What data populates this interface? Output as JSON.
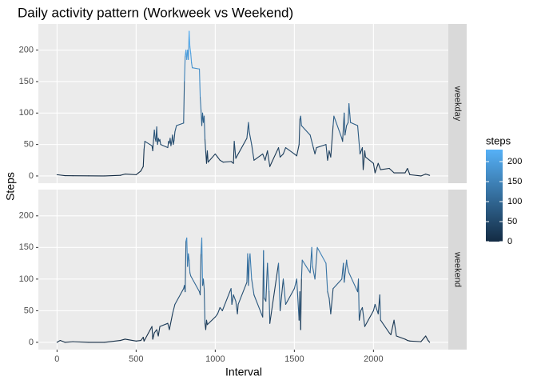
{
  "chart_data": {
    "type": "line",
    "title": "Daily activity pattern (Workweek vs Weekend)",
    "x_label": "Interval",
    "y_label": "Steps",
    "xlim": [
      -118,
      2473
    ],
    "xticks": [
      0,
      500,
      1000,
      1500,
      2000
    ],
    "ylim": [
      -11.5,
      241.5
    ],
    "yticks": [
      0,
      50,
      100,
      150,
      200
    ],
    "grid": true,
    "legend_title": "steps",
    "color_low": "#132b43",
    "color_high": "#56b1f7",
    "colorlim": [
      0,
      230
    ],
    "colorticks": [
      0,
      50,
      100,
      150,
      200
    ],
    "series": [
      {
        "name": "weekday",
        "x": [
          0,
          50,
          100,
          200,
          300,
          400,
          430,
          500,
          515,
          530,
          545,
          550,
          555,
          600,
          605,
          610,
          615,
          620,
          625,
          630,
          635,
          640,
          645,
          650,
          655,
          700,
          705,
          710,
          715,
          720,
          725,
          730,
          735,
          740,
          745,
          750,
          755,
          800,
          805,
          810,
          815,
          820,
          825,
          830,
          835,
          840,
          845,
          850,
          855,
          900,
          905,
          910,
          915,
          920,
          925,
          930,
          935,
          940,
          945,
          950,
          955,
          1000,
          1015,
          1030,
          1050,
          1100,
          1115,
          1120,
          1130,
          1145,
          1200,
          1210,
          1215,
          1230,
          1245,
          1300,
          1315,
          1330,
          1345,
          1400,
          1410,
          1430,
          1445,
          1500,
          1515,
          1530,
          1535,
          1540,
          1545,
          1600,
          1620,
          1630,
          1640,
          1700,
          1710,
          1720,
          1730,
          1745,
          1750,
          1800,
          1805,
          1815,
          1820,
          1830,
          1840,
          1845,
          1850,
          1855,
          1900,
          1915,
          1930,
          1935,
          1945,
          1950,
          2000,
          2010,
          2030,
          2045,
          2100,
          2130,
          2200,
          2215,
          2230,
          2300,
          2330,
          2355
        ],
        "values": [
          2,
          0.5,
          0.4,
          0.2,
          0,
          1,
          3,
          2,
          5,
          8,
          15,
          42,
          55,
          48,
          40,
          57,
          73,
          60,
          55,
          78,
          50,
          60,
          55,
          58,
          50,
          45,
          55,
          52,
          60,
          48,
          55,
          65,
          50,
          57,
          70,
          75,
          80,
          84,
          150,
          190,
          200,
          185,
          200,
          185,
          230,
          205,
          195,
          180,
          172,
          170,
          125,
          105,
          80,
          100,
          85,
          95,
          58,
          38,
          20,
          40,
          22,
          35,
          30,
          25,
          22,
          23,
          20,
          55,
          28,
          35,
          60,
          85,
          70,
          50,
          25,
          35,
          25,
          40,
          15,
          45,
          30,
          35,
          45,
          35,
          32,
          50,
          90,
          95,
          80,
          65,
          45,
          35,
          45,
          50,
          25,
          40,
          30,
          80,
          95,
          60,
          55,
          100,
          65,
          80,
          85,
          115,
          100,
          85,
          80,
          35,
          45,
          10,
          40,
          30,
          20,
          5,
          20,
          10,
          12,
          5,
          5,
          12,
          2,
          0,
          3,
          1
        ]
      },
      {
        "name": "weekend",
        "x": [
          0,
          20,
          50,
          100,
          200,
          300,
          400,
          430,
          500,
          530,
          545,
          550,
          600,
          605,
          615,
          630,
          640,
          650,
          700,
          710,
          730,
          745,
          800,
          805,
          810,
          815,
          820,
          825,
          830,
          835,
          840,
          845,
          900,
          905,
          910,
          915,
          920,
          925,
          930,
          935,
          940,
          945,
          950,
          1000,
          1015,
          1030,
          1045,
          1100,
          1105,
          1115,
          1130,
          1140,
          1145,
          1200,
          1205,
          1210,
          1215,
          1220,
          1230,
          1245,
          1300,
          1305,
          1310,
          1320,
          1330,
          1340,
          1345,
          1400,
          1410,
          1430,
          1445,
          1500,
          1515,
          1530,
          1535,
          1540,
          1545,
          1550,
          1600,
          1610,
          1615,
          1630,
          1645,
          1700,
          1710,
          1720,
          1730,
          1745,
          1800,
          1810,
          1815,
          1830,
          1835,
          1845,
          1900,
          1905,
          1910,
          1920,
          1930,
          1945,
          2000,
          2010,
          2030,
          2040,
          2045,
          2100,
          2110,
          2130,
          2145,
          2200,
          2215,
          2230,
          2300,
          2330,
          2345,
          2355
        ],
        "values": [
          0,
          3,
          0,
          1,
          0,
          0,
          3,
          5,
          2,
          3,
          8,
          2,
          25,
          5,
          15,
          20,
          10,
          25,
          30,
          20,
          45,
          60,
          85,
          90,
          80,
          160,
          165,
          120,
          140,
          130,
          110,
          105,
          80,
          75,
          140,
          165,
          90,
          100,
          85,
          30,
          20,
          35,
          28,
          40,
          45,
          55,
          50,
          85,
          60,
          75,
          65,
          45,
          60,
          95,
          140,
          90,
          130,
          140,
          100,
          75,
          40,
          145,
          70,
          65,
          125,
          80,
          30,
          125,
          50,
          100,
          60,
          85,
          100,
          35,
          80,
          20,
          100,
          130,
          110,
          150,
          120,
          100,
          150,
          125,
          80,
          70,
          45,
          85,
          100,
          125,
          95,
          130,
          120,
          110,
          80,
          100,
          35,
          50,
          55,
          25,
          50,
          60,
          45,
          75,
          35,
          15,
          12,
          35,
          10,
          5,
          3,
          2,
          1,
          10,
          3,
          0
        ]
      }
    ]
  }
}
